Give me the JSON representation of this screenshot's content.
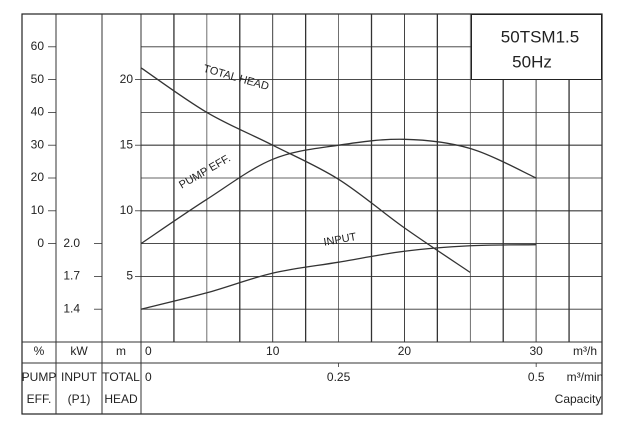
{
  "chart_data": {
    "type": "line",
    "title": "50TSM1.5",
    "subtitle": "50Hz",
    "x": [
      0,
      5,
      10,
      15,
      20,
      25,
      30
    ],
    "xlim": [
      0,
      35
    ],
    "xticks": [
      0,
      10,
      20,
      30
    ],
    "x_unit": "m³/h",
    "x2lim": [
      0,
      0.5833
    ],
    "x2ticks": [
      0,
      0.25,
      0.5
    ],
    "x2_unit": "m³/min",
    "x_label": "Capacity",
    "head_lim": [
      0,
      25
    ],
    "head_ticks": [
      5,
      10,
      15,
      20
    ],
    "head_unit": "m",
    "head_label": [
      "TOTAL",
      "HEAD"
    ],
    "eff_lim": [
      -30,
      70
    ],
    "eff_ticks": [
      0,
      10,
      20,
      30,
      40,
      50,
      60
    ],
    "eff_unit": "%",
    "eff_label": [
      "PUMP",
      "EFF."
    ],
    "input_lim": [
      1.1,
      4.1
    ],
    "input_ticks": [
      {
        "value": 1.4,
        "label": "1.4"
      },
      {
        "value": 1.7,
        "label": "1.7"
      },
      {
        "value": 2.0,
        "label": "2.0"
      }
    ],
    "input_unit": "kW",
    "input_label": [
      "INPUT",
      "(P1)"
    ],
    "series": [
      {
        "name": "TOTAL HEAD",
        "axis": "head",
        "color": "#333",
        "values": [
          20.9,
          17.5,
          15,
          12.4,
          8.7,
          5.3,
          null
        ]
      },
      {
        "name": "PUMP EFF.",
        "axis": "eff",
        "color": "#333",
        "values": [
          0,
          13.5,
          25.7,
          30,
          31.8,
          29,
          20
        ]
      },
      {
        "name": "INPUT",
        "axis": "input",
        "color": "#333",
        "values": [
          1.4,
          1.55,
          1.73,
          1.83,
          1.93,
          1.98,
          1.99
        ]
      }
    ]
  }
}
